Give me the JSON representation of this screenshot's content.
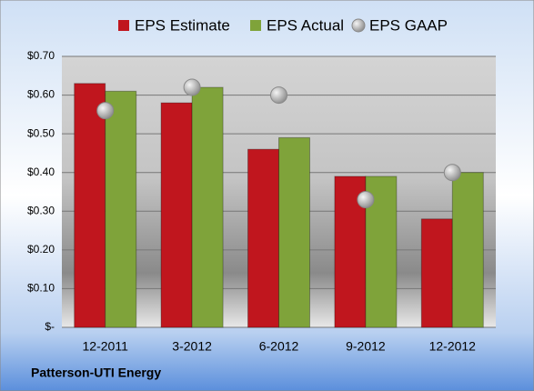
{
  "chart_data": {
    "type": "bar",
    "title": "Patterson-UTI Energy",
    "categories": [
      "12-2011",
      "3-2012",
      "6-2012",
      "9-2012",
      "12-2012"
    ],
    "series": [
      {
        "name": "EPS Estimate",
        "color": "#c0161e",
        "values": [
          0.63,
          0.58,
          0.46,
          0.39,
          0.28
        ]
      },
      {
        "name": "EPS Actual",
        "color": "#7fa33a",
        "values": [
          0.61,
          0.62,
          0.49,
          0.39,
          0.4
        ]
      },
      {
        "name": "EPS GAAP",
        "color": "#a0a0a0",
        "type": "scatter",
        "values": [
          0.56,
          0.62,
          0.6,
          0.33,
          0.4
        ]
      }
    ],
    "ylim": [
      0,
      0.7
    ],
    "yticks": [
      {
        "value": 0,
        "label": "$-"
      },
      {
        "value": 0.1,
        "label": "$0.10"
      },
      {
        "value": 0.2,
        "label": "$0.20"
      },
      {
        "value": 0.3,
        "label": "$0.30"
      },
      {
        "value": 0.4,
        "label": "$0.40"
      },
      {
        "value": 0.5,
        "label": "$0.50"
      },
      {
        "value": 0.6,
        "label": "$0.60"
      },
      {
        "value": 0.7,
        "label": "$0.70"
      }
    ],
    "grid": true
  }
}
